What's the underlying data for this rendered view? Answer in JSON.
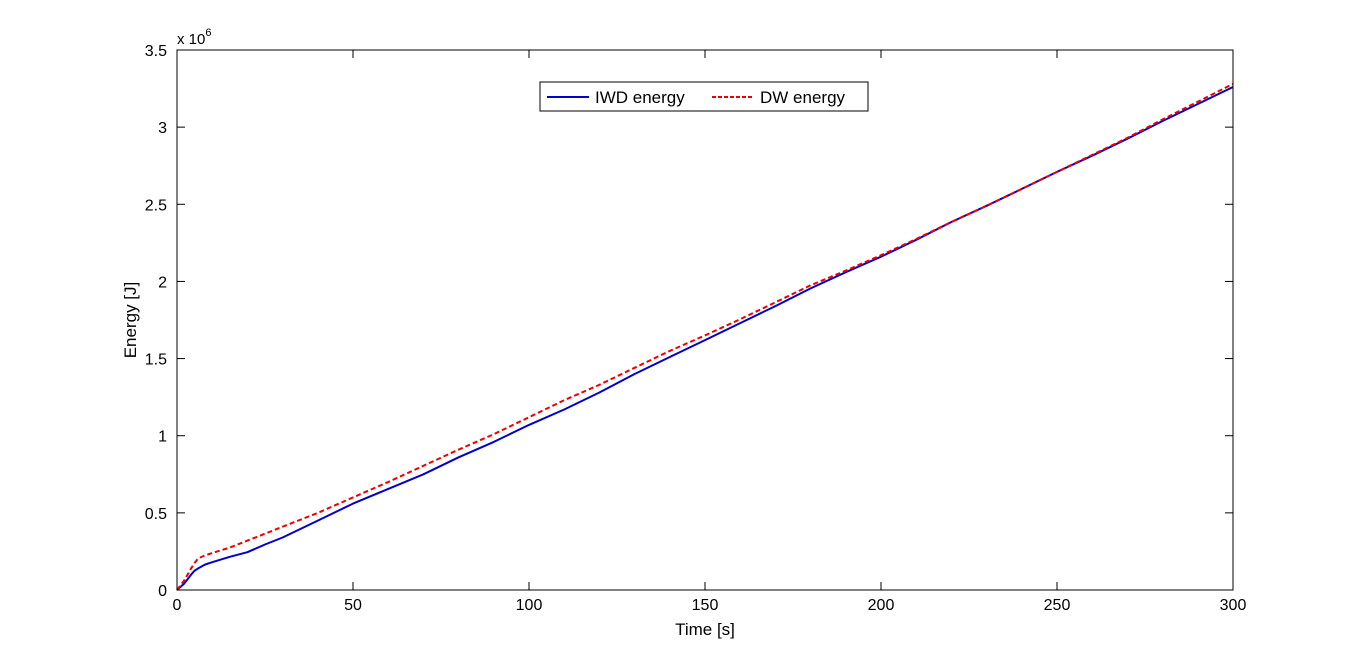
{
  "chart_data": {
    "type": "line",
    "title": "",
    "xlabel": "Time [s]",
    "ylabel": "Energy [J]",
    "xlim": [
      0,
      300
    ],
    "ylim": [
      0,
      3500000
    ],
    "y_exponent": {
      "base": "x 10",
      "power": "6"
    },
    "grid": false,
    "legend_position": "top-center",
    "x_ticks": [
      {
        "value": 0,
        "label": "0"
      },
      {
        "value": 50,
        "label": "50"
      },
      {
        "value": 100,
        "label": "100"
      },
      {
        "value": 150,
        "label": "150"
      },
      {
        "value": 200,
        "label": "200"
      },
      {
        "value": 250,
        "label": "250"
      },
      {
        "value": 300,
        "label": "300"
      }
    ],
    "y_ticks": [
      {
        "value": 0,
        "label": "0"
      },
      {
        "value": 500000,
        "label": "0.5"
      },
      {
        "value": 1000000,
        "label": "1"
      },
      {
        "value": 1500000,
        "label": "1.5"
      },
      {
        "value": 2000000,
        "label": "2"
      },
      {
        "value": 2500000,
        "label": "2.5"
      },
      {
        "value": 3000000,
        "label": "3"
      },
      {
        "value": 3500000,
        "label": "3.5"
      }
    ],
    "series": [
      {
        "name": "IWD energy",
        "color": "#0000cc",
        "style": "solid",
        "x": [
          0,
          1,
          2,
          3,
          4,
          5,
          6,
          8,
          10,
          15,
          20,
          25,
          30,
          40,
          50,
          60,
          70,
          80,
          90,
          100,
          110,
          120,
          130,
          140,
          150,
          160,
          170,
          180,
          190,
          200,
          210,
          220,
          230,
          240,
          250,
          260,
          270,
          280,
          290,
          300
        ],
        "y": [
          0,
          20000,
          40000,
          70000,
          100000,
          125000,
          140000,
          165000,
          180000,
          215000,
          245000,
          295000,
          340000,
          450000,
          560000,
          655000,
          750000,
          860000,
          960000,
          1070000,
          1170000,
          1280000,
          1400000,
          1510000,
          1620000,
          1730000,
          1840000,
          1955000,
          2060000,
          2160000,
          2270000,
          2385000,
          2490000,
          2600000,
          2710000,
          2815000,
          2925000,
          3040000,
          3150000,
          3260000
        ]
      },
      {
        "name": "DW energy",
        "color": "#ee0000",
        "style": "dashed",
        "x": [
          0,
          1,
          2,
          3,
          4,
          5,
          6,
          8,
          10,
          15,
          20,
          25,
          30,
          40,
          50,
          60,
          70,
          80,
          90,
          100,
          110,
          120,
          130,
          140,
          150,
          160,
          170,
          180,
          190,
          200,
          210,
          220,
          230,
          240,
          250,
          260,
          270,
          280,
          290,
          300
        ],
        "y": [
          0,
          30000,
          60000,
          100000,
          140000,
          175000,
          205000,
          225000,
          240000,
          275000,
          320000,
          365000,
          410000,
          500000,
          600000,
          700000,
          805000,
          910000,
          1010000,
          1120000,
          1230000,
          1330000,
          1440000,
          1550000,
          1650000,
          1755000,
          1865000,
          1975000,
          2070000,
          2170000,
          2275000,
          2385000,
          2490000,
          2600000,
          2710000,
          2820000,
          2930000,
          3050000,
          3165000,
          3280000
        ]
      }
    ]
  }
}
